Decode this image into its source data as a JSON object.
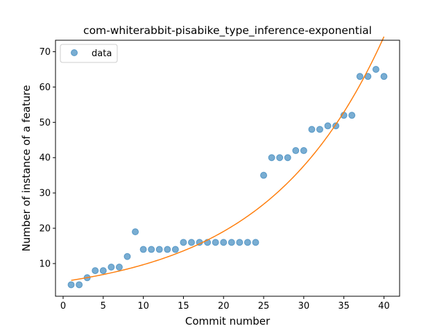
{
  "chart_data": {
    "type": "scatter",
    "title": "com-whiterabbit-pisabike_type_inference-exponential",
    "xlabel": "Commit number",
    "ylabel": "Number of instance of a feature",
    "xlim": [
      -0.95,
      41.95
    ],
    "ylim": [
      0.75,
      73.25
    ],
    "xticks": [
      0,
      5,
      10,
      15,
      20,
      25,
      30,
      35,
      40
    ],
    "yticks": [
      10,
      20,
      30,
      40,
      50,
      60,
      70
    ],
    "grid": false,
    "legend": {
      "placement": "top-left",
      "entries": [
        {
          "label": "data"
        }
      ]
    },
    "series": [
      {
        "name": "data",
        "kind": "scatter",
        "color": "#1f77b4",
        "x": [
          1,
          2,
          3,
          4,
          5,
          6,
          7,
          8,
          9,
          10,
          11,
          12,
          13,
          14,
          15,
          16,
          17,
          18,
          19,
          20,
          21,
          22,
          23,
          24,
          25,
          26,
          27,
          28,
          29,
          30,
          31,
          32,
          33,
          34,
          35,
          36,
          37,
          38,
          39,
          40
        ],
        "y": [
          4,
          4,
          6,
          8,
          8,
          9,
          9,
          12,
          19,
          14,
          14,
          14,
          14,
          14,
          16,
          16,
          16,
          16,
          16,
          16,
          16,
          16,
          16,
          16,
          35,
          40,
          40,
          40,
          42,
          42,
          48,
          48,
          49,
          49,
          52,
          52,
          63,
          63,
          65,
          63
        ]
      },
      {
        "kind": "line",
        "color": "#ff7f0e",
        "fit": {
          "model": "exponential",
          "a": 4.912,
          "b": 0.0679,
          "x_range": [
            1,
            40
          ]
        }
      }
    ]
  }
}
